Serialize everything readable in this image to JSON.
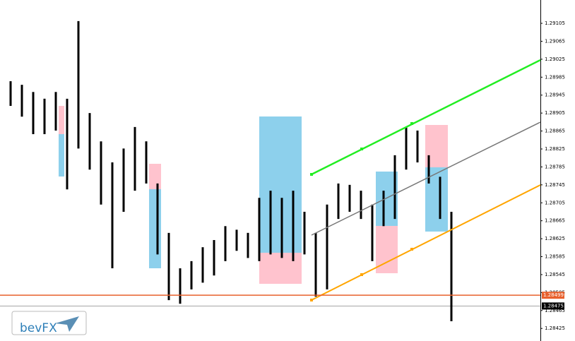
{
  "chart_data": {
    "type": "range-bar",
    "color": "#000000",
    "high": [
      1.28976,
      1.28968,
      1.28952,
      1.28937,
      1.28952,
      1.28937,
      1.2911,
      1.28905,
      1.28842,
      1.28795,
      1.28826,
      1.28874,
      1.28842,
      1.28748,
      1.28638,
      1.28559,
      1.28575,
      1.28606,
      1.28622,
      1.28653,
      1.28645,
      1.28638,
      1.28716,
      1.28732,
      1.28716,
      1.28732,
      1.28685,
      1.28638,
      1.28701,
      1.28748,
      1.28745,
      1.28732,
      1.28701,
      1.28732,
      1.28811,
      1.28874,
      1.28866,
      1.28811,
      1.28763,
      1.28685
    ],
    "low": [
      1.28921,
      1.28897,
      1.28858,
      1.28858,
      1.28866,
      1.28735,
      1.28826,
      1.28779,
      1.28701,
      1.28559,
      1.28685,
      1.28732,
      1.28748,
      1.2859,
      1.28488,
      1.2848,
      1.28512,
      1.28527,
      1.28543,
      1.28575,
      1.28598,
      1.28582,
      1.28575,
      1.2859,
      1.28582,
      1.28575,
      1.2859,
      1.28496,
      1.28512,
      1.28669,
      1.28685,
      1.28669,
      1.28575,
      1.28653,
      1.28669,
      1.28779,
      1.28795,
      1.28748,
      1.28669,
      1.28441
    ],
    "ylim": [
      1.28397,
      1.29157
    ],
    "yticks": [
      1.28425,
      1.28465,
      1.28505,
      1.28545,
      1.28585,
      1.28625,
      1.28665,
      1.28705,
      1.28745,
      1.28785,
      1.28825,
      1.28865,
      1.28905,
      1.28945,
      1.28985,
      1.29025,
      1.29065,
      1.29105
    ],
    "price_lines": [
      {
        "value": 1.28499,
        "color": "#e8602c"
      },
      {
        "value": 1.28475,
        "color": "#000000"
      }
    ],
    "logo": "bevFX"
  }
}
